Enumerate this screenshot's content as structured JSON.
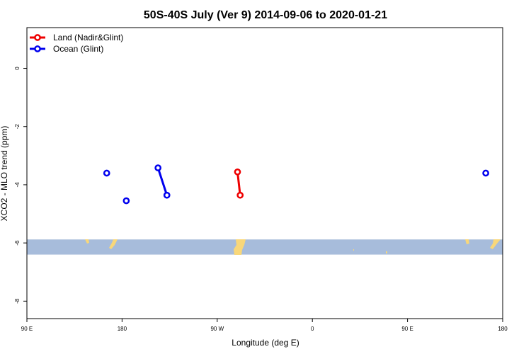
{
  "chart_data": {
    "type": "scatter",
    "title": "50S-40S July (Ver 9)   2014-09-06 to 2020-01-21",
    "xlabel": "Longitude (deg E)",
    "ylabel": "XCO2 - MLO trend (ppm)",
    "xlim": [
      90,
      450
    ],
    "ylim": [
      -8.6,
      1.4
    ],
    "x_ticks": [
      {
        "value": 90,
        "label": "90 E"
      },
      {
        "value": 180,
        "label": "180"
      },
      {
        "value": 270,
        "label": "90 W"
      },
      {
        "value": 360,
        "label": "0"
      },
      {
        "value": 450,
        "label": "90 E"
      },
      {
        "value": 540,
        "label": "180"
      }
    ],
    "y_ticks": [
      {
        "value": 0,
        "label": "0"
      },
      {
        "value": -2,
        "label": "-2"
      },
      {
        "value": -4,
        "label": "-4"
      },
      {
        "value": -6,
        "label": "-6"
      },
      {
        "value": -8,
        "label": "-8"
      }
    ],
    "legend_position": "top-left",
    "series": [
      {
        "name": "Land (Nadir&Glint)",
        "color": "#ee0000",
        "segments": [
          [
            {
              "x": 289.2,
              "y": -3.56
            },
            {
              "x": 291.7,
              "y": -4.36
            }
          ]
        ]
      },
      {
        "name": "Ocean (Glint)",
        "color": "#0000ee",
        "segments": [
          [
            {
              "x": 165.5,
              "y": -3.6
            }
          ],
          [
            {
              "x": 184.0,
              "y": -4.55
            }
          ],
          [
            {
              "x": 214.0,
              "y": -3.42
            },
            {
              "x": 222.4,
              "y": -4.36
            }
          ],
          [
            {
              "x": 524.0,
              "y": -3.6
            }
          ]
        ]
      }
    ],
    "latitude_band": {
      "y_top": -5.88,
      "y_bottom": -6.4,
      "ocean_color": "#a7bcdb",
      "land_color": "#f8d77a"
    }
  }
}
